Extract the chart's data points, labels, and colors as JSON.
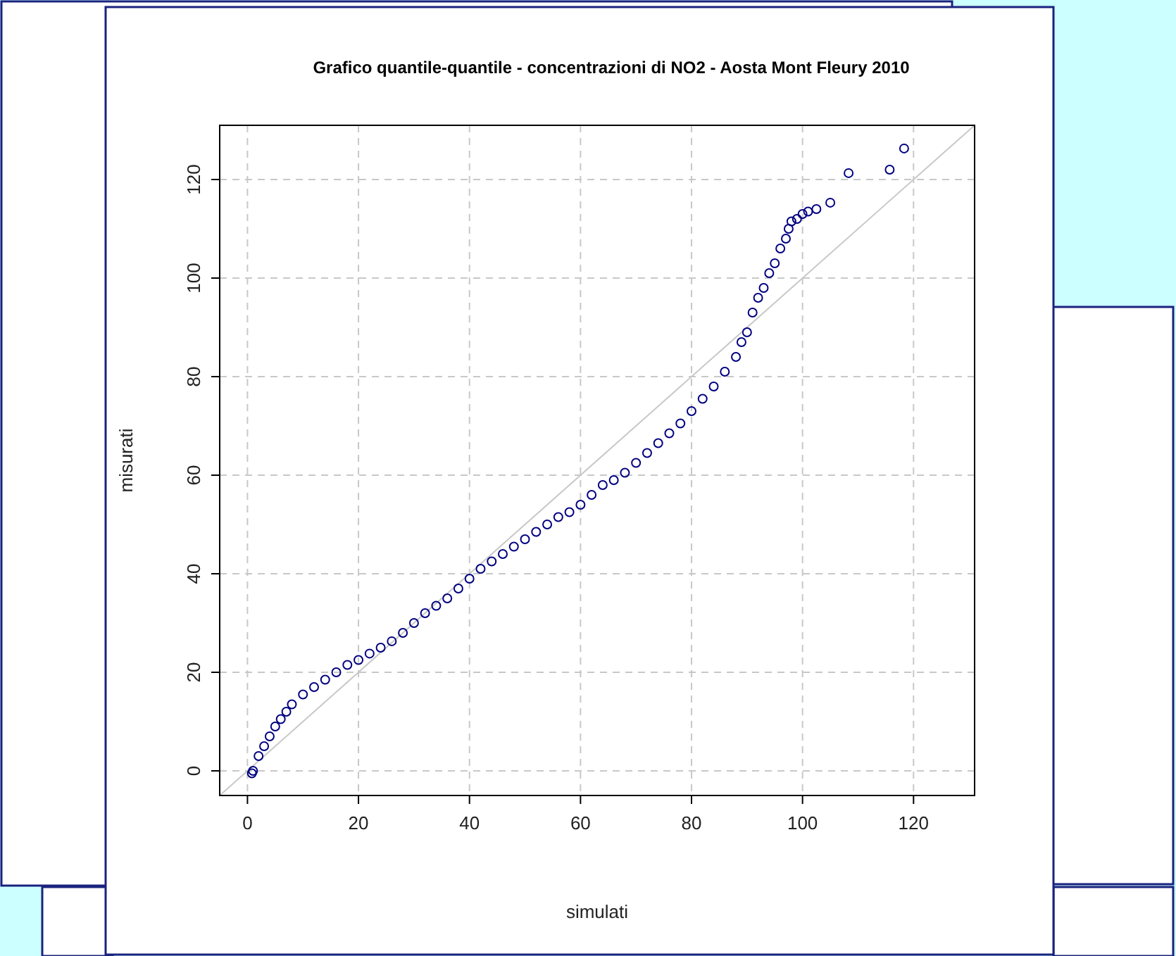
{
  "chart_data": {
    "type": "scatter",
    "title": "Grafico quantile-quantile - concentrazioni di NO2 - Aosta Mont Fleury 2010",
    "xlabel": "simulati",
    "ylabel": "misurati",
    "xlim": [
      -5,
      131
    ],
    "ylim": [
      -5,
      131
    ],
    "xticks": [
      0,
      20,
      40,
      60,
      80,
      100,
      120
    ],
    "yticks": [
      0,
      20,
      40,
      60,
      80,
      100,
      120
    ],
    "grid": true,
    "marker": "circle",
    "series": [
      {
        "type": "line",
        "marker": "none",
        "color": "#c8c8c8",
        "x": [
          -5,
          131
        ],
        "values": [
          -5,
          131
        ]
      },
      {
        "color": "#000080",
        "x": [
          0.8,
          1,
          2,
          3,
          4,
          5,
          6,
          7,
          8,
          10,
          12,
          14,
          16,
          18,
          20,
          22,
          24,
          26,
          28,
          30,
          32,
          34,
          36,
          38,
          40,
          42,
          44,
          46,
          48,
          50,
          52,
          54,
          56,
          58,
          60,
          62,
          64,
          66,
          68,
          70,
          72,
          74,
          76,
          78,
          80,
          82,
          84,
          86,
          88,
          89,
          90,
          91,
          92,
          93,
          94,
          95,
          96,
          97,
          97.5,
          98,
          99,
          100,
          101,
          102.5,
          105,
          108.3,
          115.7,
          118.3
        ],
        "values": [
          -0.5,
          0,
          3,
          5,
          7,
          9,
          10.5,
          12,
          13.5,
          15.5,
          17,
          18.5,
          20,
          21.5,
          22.5,
          23.8,
          25,
          26.3,
          28,
          30,
          32,
          33.5,
          35,
          37,
          39,
          41,
          42.5,
          44,
          45.5,
          47,
          48.5,
          50,
          51.5,
          52.5,
          54,
          56,
          58,
          59,
          60.5,
          62.5,
          64.5,
          66.5,
          68.5,
          70.5,
          73,
          75.5,
          78,
          81,
          84,
          87,
          89,
          93,
          96,
          98,
          101,
          103,
          106,
          108,
          110,
          111.5,
          112,
          113,
          113.5,
          114,
          115.3,
          121.3,
          122,
          126.3
        ]
      }
    ]
  }
}
